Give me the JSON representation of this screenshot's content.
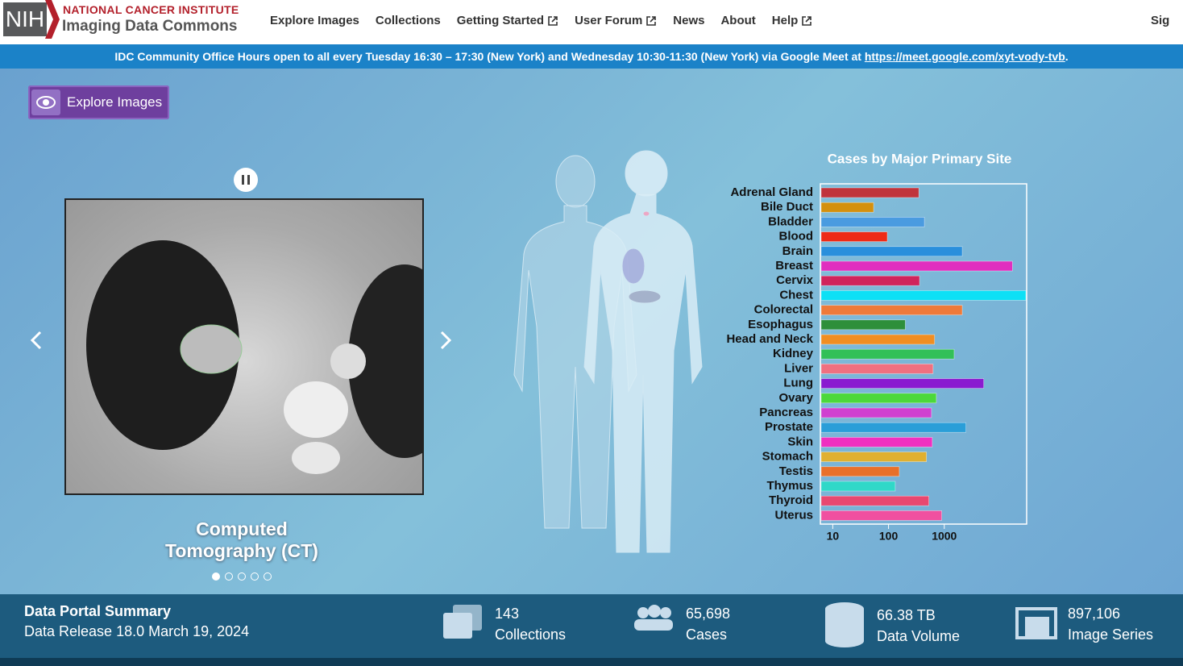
{
  "header": {
    "logo": "NIH",
    "org": "NATIONAL CANCER INSTITUTE",
    "product": "Imaging Data Commons",
    "nav": [
      "Explore Images",
      "Collections",
      "Getting Started",
      "User Forum",
      "News",
      "About",
      "Help"
    ],
    "sign_in": "Sig"
  },
  "banner": {
    "text": "IDC Community Office Hours open to all every Tuesday 16:30 – 17:30 (New York) and Wednesday 10:30-11:30 (New York) via Google Meet at",
    "link": "https://meet.google.com/xyt-vody-tvb",
    "tail": "."
  },
  "hero": {
    "button": "Explore Images",
    "caption": "Computed Tomography (CT)"
  },
  "chart_data": {
    "type": "bar",
    "orientation": "horizontal",
    "title": "Cases by Major Primary Site",
    "categories": [
      "Adrenal Gland",
      "Bile Duct",
      "Bladder",
      "Blood",
      "Brain",
      "Breast",
      "Cervix",
      "Chest",
      "Colorectal",
      "Esophagus",
      "Head and Neck",
      "Kidney",
      "Liver",
      "Lung",
      "Ovary",
      "Pancreas",
      "Prostate",
      "Skin",
      "Stomach",
      "Testis",
      "Thymus",
      "Thyroid",
      "Uterus"
    ],
    "values": [
      350,
      54,
      440,
      95,
      2100,
      16700,
      360,
      29000,
      2100,
      200,
      670,
      1500,
      630,
      5100,
      720,
      590,
      2450,
      610,
      480,
      156,
      132,
      530,
      900
    ],
    "colors": [
      "#c0343c",
      "#d4900e",
      "#4a9be0",
      "#ee2a16",
      "#2a8fdc",
      "#e02fbf",
      "#d0245c",
      "#0de0f5",
      "#ee7a3a",
      "#2e8f3a",
      "#f08e22",
      "#32c058",
      "#f07080",
      "#8a1ad0",
      "#4cd83a",
      "#d040d0",
      "#2a9ed8",
      "#f030c0",
      "#e0b030",
      "#e8702a",
      "#30d8c8",
      "#e84870",
      "#f050a0"
    ],
    "xscale": "log",
    "xlim": [
      6,
      30000
    ],
    "xticks": [
      10,
      100,
      1000
    ],
    "grid": false
  },
  "summary": {
    "title": "Data Portal Summary",
    "release": "Data Release 18.0 March 19, 2024",
    "stats": [
      {
        "value": "143",
        "label": "Collections"
      },
      {
        "value": "65,698",
        "label": "Cases"
      },
      {
        "value": "66.38 TB",
        "label": "Data Volume"
      },
      {
        "value": "897,106",
        "label": "Image Series"
      }
    ]
  }
}
